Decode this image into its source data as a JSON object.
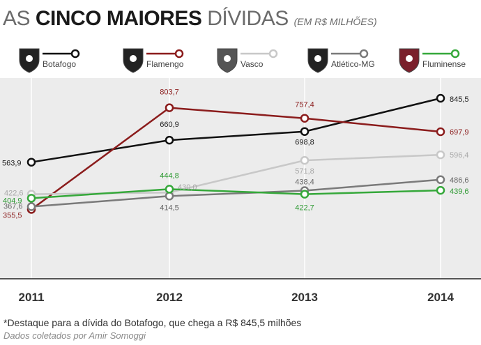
{
  "header": {
    "title_light": "AS ",
    "title_bold": "CINCO MAIORES",
    "title_light2": " DÍVIDAS",
    "unit": "(EM R$ MILHÕES)"
  },
  "chart_data": {
    "type": "line",
    "title": "AS CINCO MAIORES DÍVIDAS",
    "subtitle": "(EM R$ MILHÕES)",
    "x": [
      "2011",
      "2012",
      "2013",
      "2014"
    ],
    "ylim": [
      300,
      900
    ],
    "grid": true,
    "legend": "top",
    "series": [
      {
        "name": "Botafogo",
        "color": "#111111",
        "values": [
          563.9,
          660.9,
          698.8,
          845.5
        ],
        "labels": [
          "563,9",
          "660,9",
          "698,8",
          "845,5"
        ]
      },
      {
        "name": "Flamengo",
        "color": "#8b1c1c",
        "values": [
          355.5,
          803.7,
          757.4,
          697.9
        ],
        "labels": [
          "355,5",
          "803,7",
          "757,4",
          "697,9"
        ]
      },
      {
        "name": "Vasco",
        "color": "#c8c8c8",
        "values": [
          422.6,
          430.0,
          571.8,
          596.4
        ],
        "labels": [
          "422,6",
          "430,0",
          "571,8",
          "596,4"
        ]
      },
      {
        "name": "Atlético-MG",
        "color": "#7a7a7a",
        "values": [
          367.6,
          414.5,
          438.4,
          486.6
        ],
        "labels": [
          "367,6",
          "414,5",
          "438,4",
          "486,6"
        ]
      },
      {
        "name": "Fluminense",
        "color": "#35a83a",
        "values": [
          404.9,
          444.8,
          422.7,
          439.6
        ],
        "labels": [
          "404,9",
          "444,8",
          "422,7",
          "439,6"
        ]
      }
    ]
  },
  "footnote": "*Destaque para a dívida do Botafogo, que chega a R$ 845,5 milhões",
  "source": "Dados coletados por Amir Somoggi"
}
